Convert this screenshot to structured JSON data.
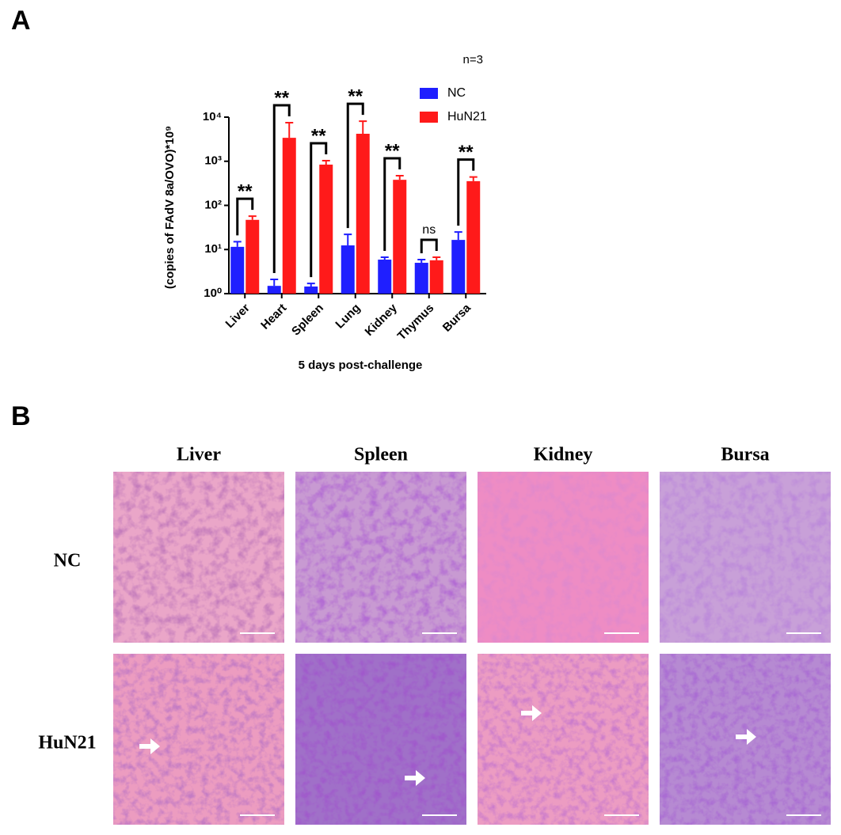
{
  "panel_labels": [
    "A",
    "B"
  ],
  "chart_data": {
    "type": "bar",
    "y_label": "(copies of FAdV 8a/OVO)*10⁹",
    "x_label": "5 days post-challenge",
    "annotation": "n=3",
    "categories": [
      "Liver",
      "Heart",
      "Spleen",
      "Lung",
      "Kidney",
      "Thymus",
      "Bursa"
    ],
    "series": [
      {
        "name": "NC",
        "color": "#1f1fff",
        "values": [
          11.5,
          1.5,
          1.45,
          12.4,
          5.9,
          5.0,
          16.5
        ],
        "errors": [
          3.5,
          0.6,
          0.25,
          9.6,
          0.8,
          0.9,
          8.5
        ]
      },
      {
        "name": "HuN21",
        "color": "#ff1a1a",
        "values": [
          47,
          3400,
          840,
          4200,
          380,
          5.7,
          354
        ],
        "errors": [
          10,
          4100,
          190,
          3900,
          90,
          1.0,
          86
        ]
      }
    ],
    "significance": [
      "**",
      "**",
      "**",
      "**",
      "**",
      "ns",
      "**"
    ],
    "log_scale": true,
    "ylim": [
      1,
      10000
    ],
    "yticks": [
      {
        "value": 1,
        "label": "10⁰"
      },
      {
        "value": 10,
        "label": "10¹"
      },
      {
        "value": 100,
        "label": "10²"
      },
      {
        "value": 1000,
        "label": "10³"
      },
      {
        "value": 10000,
        "label": "10⁴"
      }
    ],
    "legend": "upper right"
  },
  "histology": {
    "columns": [
      "Liver",
      "Spleen",
      "Kidney",
      "Bursa"
    ],
    "rows": [
      "NC",
      "HuN21"
    ]
  }
}
